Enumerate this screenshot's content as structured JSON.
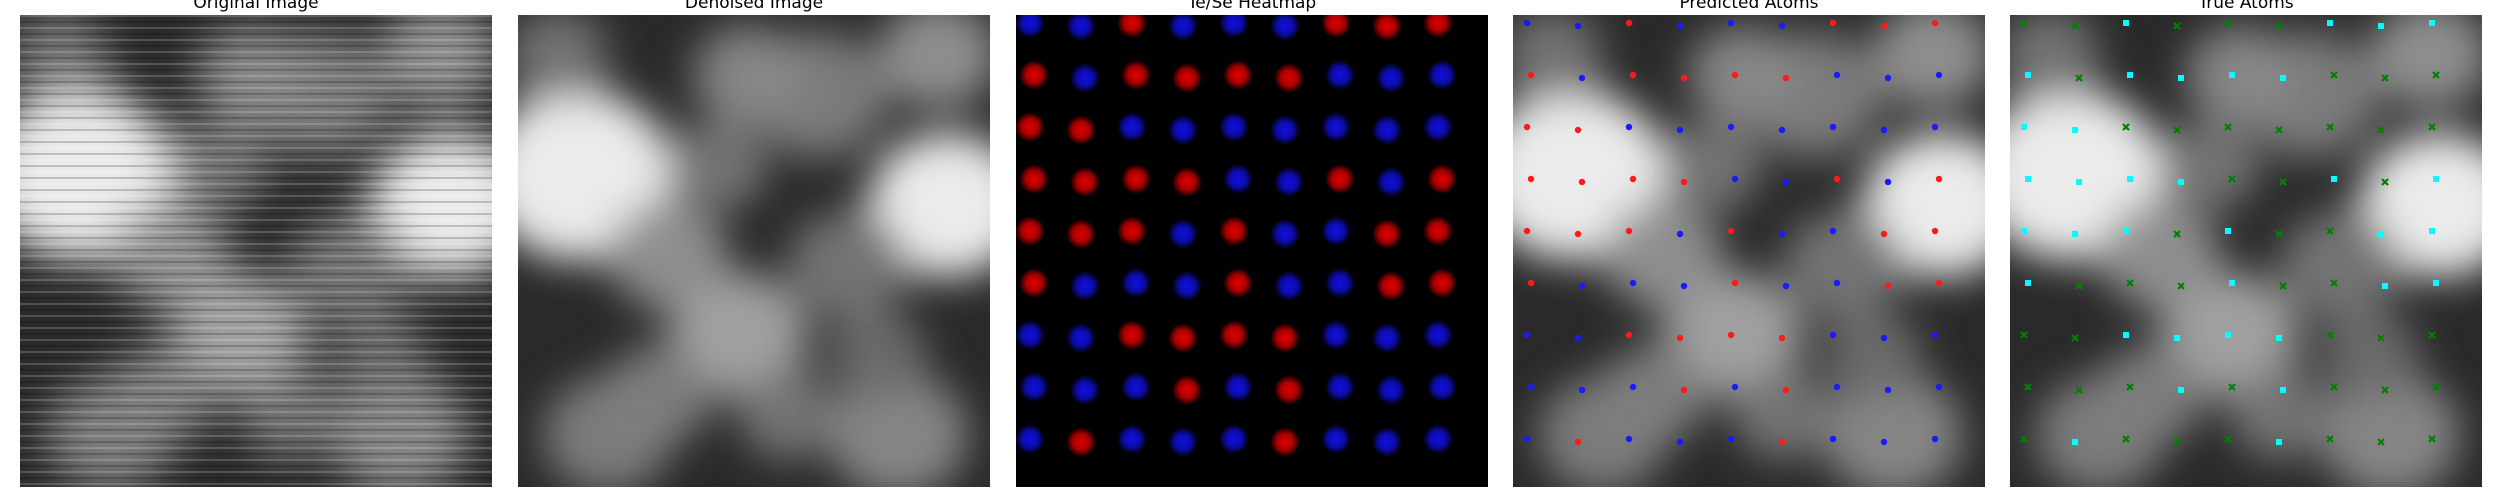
{
  "panels": [
    {
      "key": "original",
      "title": "Original Image"
    },
    {
      "key": "denoised",
      "title": "Denoised Image"
    },
    {
      "key": "heatmap",
      "title": "Te/Se Heatmap"
    },
    {
      "key": "predicted",
      "title": "Predicted Atoms"
    },
    {
      "key": "true",
      "title": "True Atoms"
    }
  ],
  "colors": {
    "te": "#e00000",
    "se": "#1010e0",
    "te_marker": "#ff1a1a",
    "se_marker": "#1a1aff",
    "true_te_marker": "#00ffff",
    "true_se_marker": "#008000",
    "heatmap_background": "#000000"
  },
  "legend_semantics": {
    "heatmap": "red = Te, blue = Se",
    "predicted": "red dots = Te, blue dots = Se",
    "true": "cyan squares = Te, green crosses = Se"
  },
  "lattice": {
    "columns": 9,
    "rows": 9,
    "species_grid": [
      "BBRBBBRRR",
      "RBRRRRBBB",
      "RRBBBBBBB",
      "RRRRBBRBR",
      "RRRBRBBRR",
      "RBBBRBBRR",
      "BBRRRRBBB",
      "BBBRBRBBB",
      "BRBBBRBBB"
    ]
  }
}
